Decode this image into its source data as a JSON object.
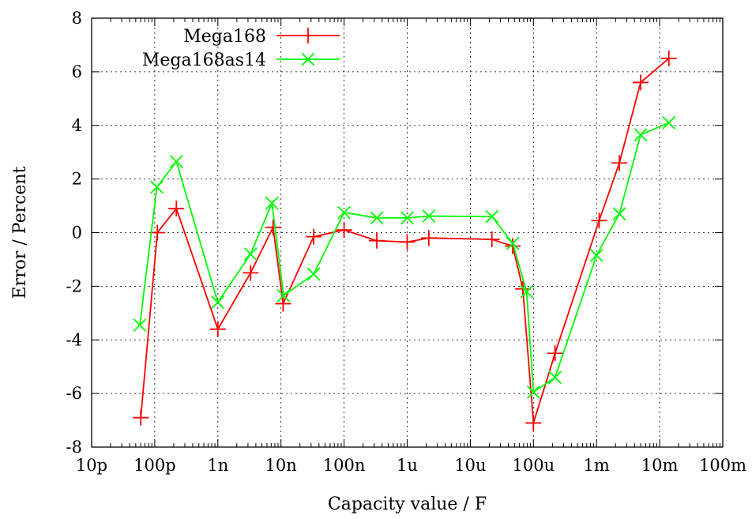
{
  "chart_data": {
    "type": "line",
    "xlabel": "Capacity value / F",
    "ylabel": "Error / Percent",
    "x_scale": "log",
    "xlim": [
      "10p",
      "100m"
    ],
    "ylim": [
      -8,
      8
    ],
    "grid": true,
    "legend_position": "top-left",
    "x_ticks": [
      {
        "value": 1e-11,
        "label": "10p"
      },
      {
        "value": 1e-10,
        "label": "100p"
      },
      {
        "value": 1e-09,
        "label": "1n"
      },
      {
        "value": 1e-08,
        "label": "10n"
      },
      {
        "value": 1e-07,
        "label": "100n"
      },
      {
        "value": 1e-06,
        "label": "1u"
      },
      {
        "value": 1e-05,
        "label": "10u"
      },
      {
        "value": 0.0001,
        "label": "100u"
      },
      {
        "value": 0.001,
        "label": "1m"
      },
      {
        "value": 0.01,
        "label": "10m"
      },
      {
        "value": 0.1,
        "label": "100m"
      }
    ],
    "y_ticks": [
      {
        "value": -8,
        "label": "-8"
      },
      {
        "value": -6,
        "label": "-6"
      },
      {
        "value": -4,
        "label": "-4"
      },
      {
        "value": -2,
        "label": "-2"
      },
      {
        "value": 0,
        "label": "0"
      },
      {
        "value": 2,
        "label": "2"
      },
      {
        "value": 4,
        "label": "4"
      },
      {
        "value": 6,
        "label": "6"
      },
      {
        "value": 8,
        "label": "8"
      }
    ],
    "series": [
      {
        "name": "Mega168",
        "color": "#ff0000",
        "marker": "plus",
        "x": [
          "60p",
          "110p",
          "220p",
          "1n",
          "3.3n",
          "7.5n",
          "10.8n",
          "33n",
          "100n",
          "330n",
          "1u",
          "2.2u",
          "22u",
          "47u",
          "68u",
          "100u",
          "220u",
          "1.1m",
          "2.3m",
          "5m",
          "14m"
        ],
        "y": [
          -6.9,
          0.0,
          0.9,
          -3.6,
          -1.5,
          0.2,
          -2.65,
          -0.15,
          0.1,
          -0.3,
          -0.35,
          -0.2,
          -0.25,
          -0.5,
          -2.1,
          -7.1,
          -4.5,
          0.45,
          2.6,
          5.6,
          6.5
        ]
      },
      {
        "name": "Mega168as14",
        "color": "#00ff00",
        "marker": "x",
        "x": [
          "58p",
          "108p",
          "220p",
          "1n",
          "3.3n",
          "7.2n",
          "11n",
          "33n",
          "100n",
          "330n",
          "1u",
          "2.2u",
          "22u",
          "47u",
          "78u",
          "100u",
          "220u",
          "1m",
          "2.3m",
          "5m",
          "14m"
        ],
        "y": [
          -3.45,
          1.7,
          2.65,
          -2.6,
          -0.8,
          1.1,
          -2.35,
          -1.55,
          0.75,
          0.55,
          0.55,
          0.62,
          0.6,
          -0.4,
          -2.2,
          -5.95,
          -5.4,
          -0.85,
          0.7,
          3.65,
          4.1
        ]
      }
    ]
  }
}
